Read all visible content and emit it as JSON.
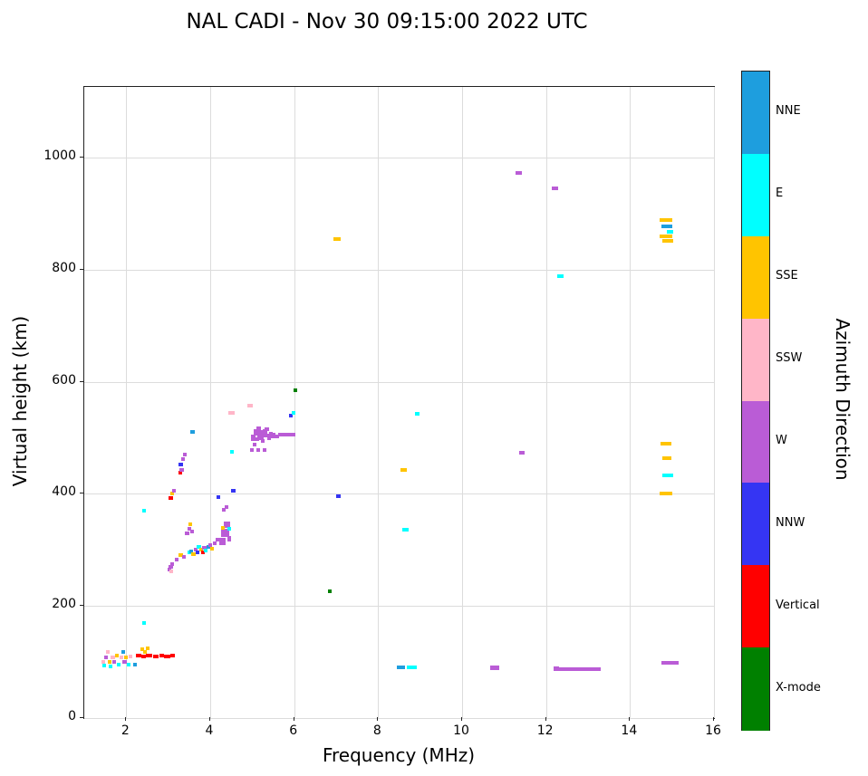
{
  "chart_data": {
    "type": "scatter",
    "title": "NAL CADI - Nov 30 09:15:00 2022 UTC",
    "xlabel": "Frequency (MHz)",
    "ylabel": "Virtual height (km)",
    "xlim": [
      1,
      16
    ],
    "ylim": [
      0,
      1126
    ],
    "xticks": [
      2,
      4,
      6,
      8,
      10,
      12,
      14,
      16
    ],
    "yticks": [
      0,
      200,
      400,
      600,
      800,
      1000
    ],
    "grid": true,
    "colorbar": {
      "label": "Azimuth Direction",
      "categories": [
        "NNE",
        "E",
        "SSE",
        "SSW",
        "W",
        "NNW",
        "Vertical",
        "X-mode"
      ],
      "colors": [
        "#1E9EDE",
        "#00FFFF",
        "#FFC400",
        "#FFB6C8",
        "#BA5CD6",
        "#3535F3",
        "#FF0000",
        "#008000"
      ]
    },
    "point_note": "points are [freq_MHz, height_km, direction, width_MHz(optional), thickness_km(optional)]",
    "points": [
      [
        1.45,
        100,
        "SSW"
      ],
      [
        1.48,
        93,
        "E"
      ],
      [
        1.52,
        108,
        "W"
      ],
      [
        1.56,
        118,
        "SSW"
      ],
      [
        1.6,
        100,
        "SSE"
      ],
      [
        1.63,
        92,
        "E"
      ],
      [
        1.68,
        108,
        "SSW"
      ],
      [
        1.72,
        100,
        "W"
      ],
      [
        1.78,
        112,
        "SSE"
      ],
      [
        1.82,
        95,
        "E"
      ],
      [
        1.88,
        108,
        "SSW"
      ],
      [
        1.92,
        118,
        "NNE"
      ],
      [
        1.96,
        100,
        "W"
      ],
      [
        2.0,
        108,
        "SSE"
      ],
      [
        2.05,
        95,
        "E"
      ],
      [
        2.1,
        110,
        "SSW"
      ],
      [
        2.2,
        95,
        "NNE"
      ],
      [
        2.3,
        112,
        "Vertical",
        0.12
      ],
      [
        2.42,
        110,
        "Vertical",
        0.1
      ],
      [
        2.55,
        112,
        "Vertical",
        0.15
      ],
      [
        2.7,
        110,
        "Vertical",
        0.12
      ],
      [
        2.85,
        112,
        "Vertical",
        0.1
      ],
      [
        2.98,
        110,
        "Vertical",
        0.15
      ],
      [
        3.1,
        112,
        "Vertical",
        0.1
      ],
      [
        2.38,
        122,
        "SSE"
      ],
      [
        2.45,
        118,
        "SSE"
      ],
      [
        2.52,
        125,
        "SSE"
      ],
      [
        2.42,
        170,
        "E"
      ],
      [
        2.42,
        370,
        "E"
      ],
      [
        3.06,
        392,
        "Vertical"
      ],
      [
        3.1,
        400,
        "SSE"
      ],
      [
        3.14,
        405,
        "W"
      ],
      [
        3.02,
        265,
        "W"
      ],
      [
        3.06,
        270,
        "W"
      ],
      [
        3.1,
        275,
        "W"
      ],
      [
        3.08,
        262,
        "SSW"
      ],
      [
        3.2,
        282,
        "W"
      ],
      [
        3.3,
        290,
        "SSE"
      ],
      [
        3.38,
        287,
        "W"
      ],
      [
        3.28,
        438,
        "Vertical"
      ],
      [
        3.3,
        452,
        "NNW"
      ],
      [
        3.32,
        443,
        "W"
      ],
      [
        3.36,
        462,
        "W"
      ],
      [
        3.4,
        470,
        "W"
      ],
      [
        3.58,
        510,
        "NNE"
      ],
      [
        3.45,
        330,
        "W"
      ],
      [
        3.5,
        338,
        "W"
      ],
      [
        3.52,
        345,
        "SSE"
      ],
      [
        3.56,
        332,
        "W"
      ],
      [
        3.5,
        295,
        "E"
      ],
      [
        3.55,
        298,
        "NNE"
      ],
      [
        3.6,
        292,
        "SSE"
      ],
      [
        3.65,
        300,
        "W"
      ],
      [
        3.7,
        296,
        "NNW"
      ],
      [
        3.73,
        305,
        "E"
      ],
      [
        3.78,
        300,
        "SSE"
      ],
      [
        3.82,
        296,
        "Vertical"
      ],
      [
        3.86,
        303,
        "W"
      ],
      [
        3.9,
        299,
        "E"
      ],
      [
        3.95,
        305,
        "NNE"
      ],
      [
        4.0,
        308,
        "W"
      ],
      [
        4.05,
        302,
        "SSE"
      ],
      [
        4.1,
        312,
        "W"
      ],
      [
        4.18,
        318,
        "W"
      ],
      [
        4.3,
        315,
        "W",
        0.15,
        12
      ],
      [
        4.35,
        330,
        "W",
        0.2,
        15
      ],
      [
        4.4,
        345,
        "W",
        0.15,
        10
      ],
      [
        4.45,
        320,
        "W",
        0.1,
        10
      ],
      [
        4.3,
        340,
        "SSE"
      ],
      [
        4.46,
        338,
        "E"
      ],
      [
        4.32,
        372,
        "W"
      ],
      [
        4.38,
        377,
        "W"
      ],
      [
        4.2,
        394,
        "NNW"
      ],
      [
        4.55,
        405,
        "NNW"
      ],
      [
        4.5,
        545,
        "SSW",
        0.15
      ],
      [
        4.52,
        475,
        "E"
      ],
      [
        4.95,
        558,
        "SSW",
        0.12
      ],
      [
        5.0,
        478,
        "W"
      ],
      [
        5.05,
        488,
        "W"
      ],
      [
        5.02,
        500,
        "W",
        0.1,
        10
      ],
      [
        5.08,
        510,
        "W",
        0.1,
        12
      ],
      [
        5.12,
        498,
        "W"
      ],
      [
        5.15,
        512,
        "W",
        0.12,
        15
      ],
      [
        5.2,
        505,
        "W",
        0.15,
        18
      ],
      [
        5.25,
        495,
        "W"
      ],
      [
        5.3,
        508,
        "W",
        0.1,
        15
      ],
      [
        5.35,
        515,
        "W"
      ],
      [
        5.4,
        502,
        "W",
        0.1,
        12
      ],
      [
        5.45,
        508,
        "W"
      ],
      [
        5.5,
        505,
        "W"
      ],
      [
        5.55,
        503,
        "W",
        0.2
      ],
      [
        5.3,
        478,
        "W"
      ],
      [
        5.15,
        478,
        "W"
      ],
      [
        5.75,
        505,
        "W",
        0.25
      ],
      [
        5.95,
        505,
        "W",
        0.15
      ],
      [
        5.92,
        540,
        "NNW"
      ],
      [
        5.98,
        545,
        "E"
      ],
      [
        6.02,
        585,
        "X-mode"
      ],
      [
        6.85,
        226,
        "X-mode"
      ],
      [
        7.02,
        855,
        "SSE",
        0.18
      ],
      [
        7.05,
        395,
        "NNW",
        0.12
      ],
      [
        8.6,
        443,
        "SSE",
        0.15
      ],
      [
        8.65,
        336,
        "E",
        0.15
      ],
      [
        8.93,
        543,
        "E",
        0.12
      ],
      [
        8.55,
        90,
        "NNE",
        0.2,
        6
      ],
      [
        8.8,
        90,
        "E",
        0.25,
        5
      ],
      [
        10.78,
        90,
        "W",
        0.22,
        8
      ],
      [
        11.35,
        973,
        "W",
        0.15
      ],
      [
        11.42,
        473,
        "W",
        0.12
      ],
      [
        12.22,
        945,
        "W",
        0.15
      ],
      [
        12.35,
        788,
        "E",
        0.15
      ],
      [
        12.25,
        88,
        "W",
        0.12,
        7
      ],
      [
        12.75,
        88,
        "W",
        1.1,
        5
      ],
      [
        14.85,
        888,
        "SSE",
        0.3
      ],
      [
        14.88,
        877,
        "NNE",
        0.25
      ],
      [
        14.95,
        868,
        "E",
        0.15
      ],
      [
        14.85,
        860,
        "SSE",
        0.3
      ],
      [
        14.9,
        852,
        "SSE",
        0.25
      ],
      [
        14.85,
        490,
        "SSE",
        0.25
      ],
      [
        14.88,
        463,
        "SSE",
        0.2
      ],
      [
        14.9,
        433,
        "E",
        0.25
      ],
      [
        14.85,
        400,
        "SSE",
        0.3
      ],
      [
        14.95,
        98,
        "W",
        0.4,
        5
      ]
    ]
  }
}
